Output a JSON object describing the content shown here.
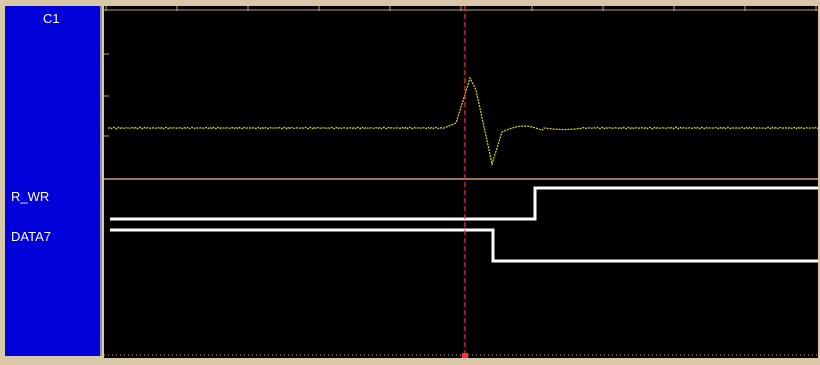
{
  "channels": {
    "analog": {
      "label": "C1",
      "trace_color": "#e0e000"
    },
    "digital": [
      {
        "label": "R_WR"
      },
      {
        "label": "DATA7"
      }
    ]
  },
  "colors": {
    "panel_bg": "#0000d8",
    "plot_bg": "#000000",
    "cursor": "#ff3030",
    "digital_trace": "#ffffff",
    "separator": "#c8a070"
  }
}
